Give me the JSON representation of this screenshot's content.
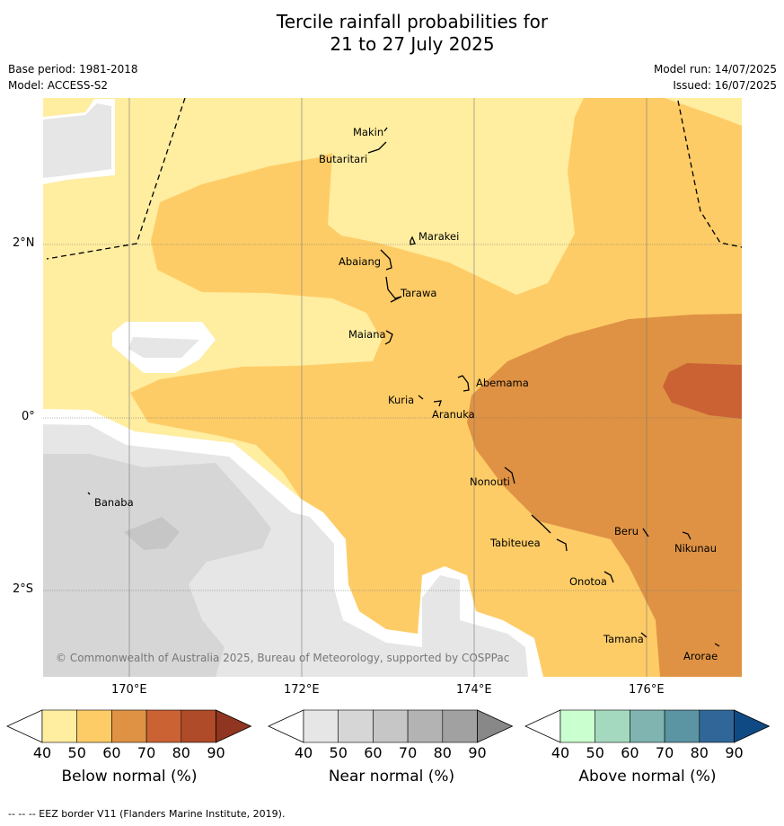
{
  "title": {
    "line1": "Tercile rainfall probabilities for",
    "line2": "21 to 27 July 2025"
  },
  "meta": {
    "base_period": "Base period: 1981-2018",
    "model": "Model: ACCESS-S2",
    "model_run": "Model run: 14/07/2025",
    "issued": "Issued: 16/07/2025"
  },
  "axes": {
    "lat_ticks": [
      "2°N",
      "0°",
      "2°S"
    ],
    "lon_ticks": [
      "170°E",
      "172°E",
      "174°E",
      "176°E"
    ]
  },
  "islands": [
    "Makin",
    "Butaritari",
    "Marakei",
    "Abaiang",
    "Tarawa",
    "Maiana",
    "Abemama",
    "Kuria",
    "Aranuka",
    "Banaba",
    "Nonouti",
    "Tabiteuea",
    "Beru",
    "Nikunau",
    "Onotoa",
    "Tamana",
    "Arorae"
  ],
  "copyright": "© Commonwealth of Australia 2025, Bureau of Meteorology, supported by COSPPac",
  "colorbars": {
    "ticks": [
      "40",
      "50",
      "60",
      "70",
      "80",
      "90"
    ],
    "below": {
      "label": "Below normal (%)",
      "colors": [
        "#ffffff",
        "#ffeda0",
        "#fecc66",
        "#df9244",
        "#cb6234",
        "#af4b28",
        "#8f3520"
      ]
    },
    "near": {
      "label": "Near normal (%)",
      "colors": [
        "#ffffff",
        "#e6e6e6",
        "#d6d6d6",
        "#c6c6c6",
        "#b3b3b3",
        "#a1a1a1",
        "#888888"
      ]
    },
    "above": {
      "label": "Above normal (%)",
      "colors": [
        "#ffffff",
        "#caffcf",
        "#a5d9bf",
        "#7fb4b1",
        "#5b94a2",
        "#316798",
        "#104a84"
      ]
    }
  },
  "footer": "--  --  -- EEZ border V11 (Flanders Marine Institute, 2019)."
}
